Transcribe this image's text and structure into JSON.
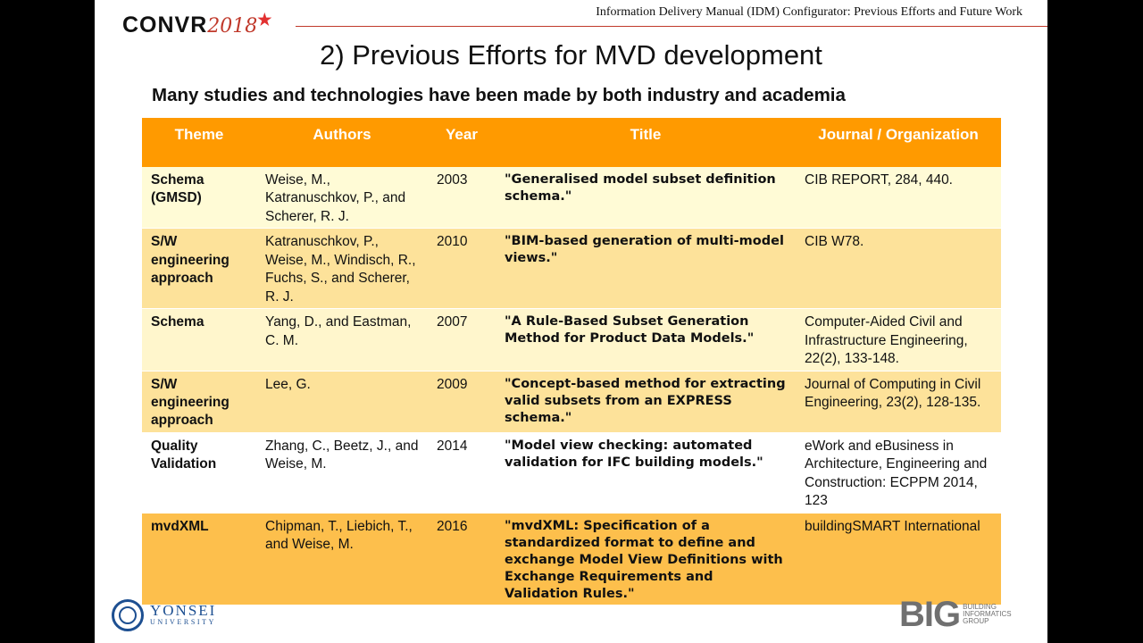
{
  "header": {
    "conference_logo_text": "CONVR",
    "conference_logo_year": "2018",
    "running_title": "Information Delivery Manual (IDM) Configurator: Previous Efforts and Future Work"
  },
  "slide": {
    "title": "2) Previous Efforts for MVD development",
    "subtitle": "Many studies and technologies have been made by both industry and academia"
  },
  "table": {
    "headers": [
      "Theme",
      "Authors",
      "Year",
      "Title",
      "Journal / Organization"
    ],
    "rows": [
      {
        "theme": "Schema (GMSD)",
        "authors": "Weise, M., Katranuschkov, P., and Scherer, R. J.",
        "year": "2003",
        "title": "\"Generalised model subset definition schema.\"",
        "journal": "CIB REPORT, 284, 440."
      },
      {
        "theme": "S/W engineering approach",
        "authors": "Katranuschkov, P., Weise, M., Windisch, R., Fuchs, S., and Scherer, R. J.",
        "year": "2010",
        "title": "\"BIM-based generation of multi-model views.\"",
        "journal": "CIB W78."
      },
      {
        "theme": "Schema",
        "authors": "Yang, D., and Eastman, C. M.",
        "year": "2007",
        "title": "\"A Rule-Based Subset Generation Method for Product Data Models.\"",
        "journal": "Computer-Aided Civil and Infrastructure Engineering, 22(2), 133-148."
      },
      {
        "theme": "S/W engineering approach",
        "authors": "Lee, G.",
        "year": "2009",
        "title": "\"Concept-based method for extracting valid subsets from an EXPRESS schema.\"",
        "journal": "Journal of Computing in Civil Engineering, 23(2), 128-135."
      },
      {
        "theme": "Quality Validation",
        "authors": "Zhang, C., Beetz, J., and Weise, M.",
        "year": "2014",
        "title": "\"Model view checking: automated validation for IFC building models.\"",
        "journal": "eWork and eBusiness in Architecture, Engineering and Construction: ECPPM 2014, 123"
      },
      {
        "theme": "mvdXML",
        "authors": "Chipman, T., Liebich, T., and Weise, M.",
        "year": "2016",
        "title": "\"mvdXML: Specification of a standardized format to define and exchange Model View Definitions with Exchange Requirements and Validation Rules.\"",
        "journal": "buildingSMART International"
      }
    ]
  },
  "footer": {
    "university_name": "YONSEI",
    "university_sub": "UNIVERSITY",
    "group_mark": "BIG",
    "group_sub": "BUILDING INFORMATICS GROUP"
  },
  "colors": {
    "header_orange": "#ff9a00",
    "accent_red": "#c0392b",
    "yonsei_blue": "#1d4f91"
  }
}
